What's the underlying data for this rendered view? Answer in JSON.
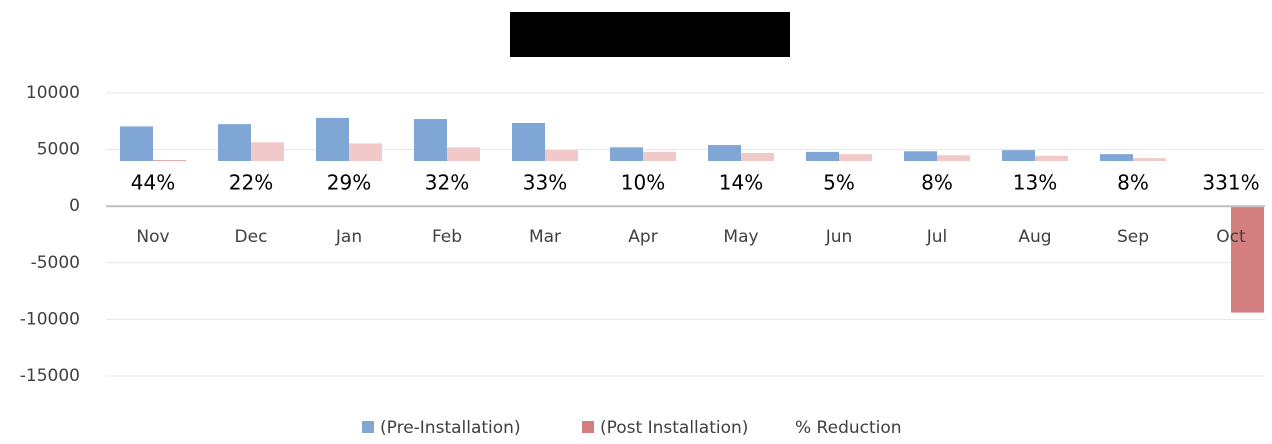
{
  "chart_data": {
    "type": "bar",
    "categories": [
      "Nov",
      "Dec",
      "Jan",
      "Feb",
      "Mar",
      "Apr",
      "May",
      "Jun",
      "Jul",
      "Aug",
      "Sep",
      "Oct"
    ],
    "series": [
      {
        "name": "(Pre-Installation)",
        "color": "#7fa6d4",
        "values": [
          7050,
          7250,
          7800,
          7700,
          7350,
          5200,
          5400,
          4800,
          4850,
          4950,
          4600,
          800
        ]
      },
      {
        "name": "(Post Installation)",
        "color": "#d47f7f",
        "colors": [
          "#d47f7f",
          "#f2c9c9",
          "#f2c9c9",
          "#f2c9c9",
          "#f2c9c9",
          "#f2c9c9",
          "#f2c9c9",
          "#f2c9c9",
          "#f2c9c9",
          "#f2c9c9",
          "#f2c9c9",
          "#d47f7f"
        ],
        "values": [
          4050,
          5650,
          5550,
          5200,
          4950,
          4800,
          4700,
          4600,
          4500,
          4450,
          4250,
          -9400
        ]
      },
      {
        "name": "% Reduction",
        "values": [
          44,
          22,
          29,
          32,
          33,
          10,
          14,
          5,
          8,
          13,
          8,
          331
        ],
        "value_labels": [
          "44%",
          "22%",
          "29%",
          "32%",
          "33%",
          "10%",
          "14%",
          "5%",
          "8%",
          "13%",
          "8%",
          "331%"
        ]
      }
    ],
    "ylim": [
      -15000,
      10000
    ],
    "yticks": [
      -15000,
      -10000,
      -5000,
      0,
      5000,
      10000
    ],
    "grid": true
  }
}
